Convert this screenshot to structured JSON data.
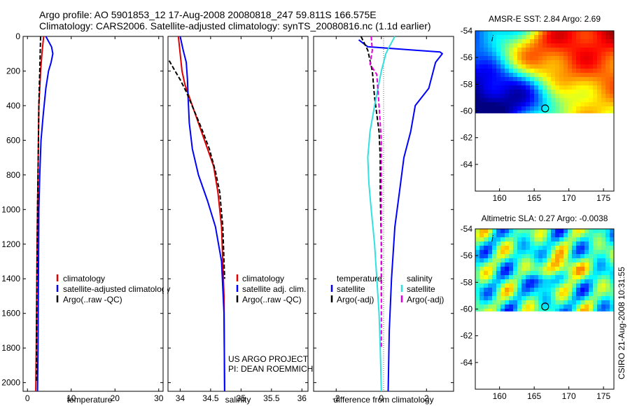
{
  "header": {
    "line1": "Argo profile: AO 5901853_12 17-Aug-2008 20080818_247 59.811S 166.575E",
    "line2": "Climatology: CARS2006. Satellite-adjusted climatology: synTS_20080816.nc (1.1d earlier)"
  },
  "colors": {
    "climatology": "#e00000",
    "satellite": "#0000ff",
    "argo": "#000000",
    "cyan": "#33e0e0",
    "magenta": "#e000e0"
  },
  "footer": {
    "project": "US ARGO PROJECT",
    "pi": "PI: DEAN ROEMMICH",
    "stamp": "CSIRO 21-Aug-2008 10:31:55"
  },
  "chart_data": [
    {
      "type": "line",
      "id": "temperature",
      "xlabel": "temperature",
      "ylabel": "",
      "xlim": [
        -1,
        31
      ],
      "ylim": [
        2050,
        0
      ],
      "xticks": [
        0,
        10,
        20,
        30
      ],
      "yticks": [
        0,
        200,
        400,
        600,
        800,
        1000,
        1200,
        1400,
        1600,
        1800,
        2000
      ],
      "legend": {
        "placement": "lower-right",
        "entries": [
          "climatology",
          "satellite-adjusted climatology",
          "Argo(..raw -QC)"
        ]
      },
      "series": [
        {
          "name": "climatology",
          "color": "climatology",
          "x": [
            3.7,
            3.5,
            3.3,
            3.0,
            2.8,
            2.6,
            2.5,
            2.4,
            2.3,
            2.2,
            2.1,
            2.0,
            1.9
          ],
          "y": [
            0,
            50,
            100,
            200,
            300,
            400,
            600,
            800,
            1000,
            1200,
            1500,
            1800,
            2050
          ]
        },
        {
          "name": "satellite-adjusted climatology",
          "color": "satellite",
          "x": [
            4.2,
            5.5,
            5.8,
            5.4,
            4.8,
            4.2,
            3.6,
            3.1,
            2.8,
            2.6,
            2.5,
            2.4,
            2.3
          ],
          "y": [
            0,
            60,
            100,
            150,
            200,
            300,
            450,
            600,
            800,
            1000,
            1400,
            1800,
            2050
          ]
        },
        {
          "name": "Argo(..raw -QC)",
          "color": "argo",
          "dash": true,
          "x": [
            3.0,
            2.9,
            2.8,
            2.7,
            2.6,
            2.5,
            2.4,
            2.3,
            2.2,
            2.1,
            2.0
          ],
          "y": [
            0,
            100,
            200,
            300,
            400,
            600,
            800,
            1000,
            1300,
            1600,
            2000
          ]
        }
      ]
    },
    {
      "type": "line",
      "id": "salinity",
      "xlabel": "salinity",
      "ylabel": "",
      "xlim": [
        33.8,
        36.1
      ],
      "ylim": [
        2050,
        0
      ],
      "xticks": [
        34,
        34.5,
        35,
        35.5,
        36
      ],
      "yticks": [
        0,
        200,
        400,
        600,
        800,
        1000,
        1200,
        1400,
        1600,
        1800,
        2000
      ],
      "legend": {
        "placement": "lower-right",
        "entries": [
          "climatology",
          "satellite adj. clim.",
          "Argo(..raw -QC)"
        ]
      },
      "series": [
        {
          "name": "climatology",
          "color": "climatology",
          "x": [
            33.97,
            34.0,
            34.03,
            34.08,
            34.15,
            34.25,
            34.35,
            34.45,
            34.55,
            34.62,
            34.68,
            34.72,
            34.73
          ],
          "y": [
            0,
            100,
            200,
            280,
            350,
            450,
            550,
            650,
            750,
            900,
            1100,
            1500,
            2050
          ]
        },
        {
          "name": "satellite adj. clim.",
          "color": "satellite",
          "x": [
            34.0,
            34.05,
            34.1,
            34.12,
            34.13,
            34.15,
            34.2,
            34.3,
            34.45,
            34.58,
            34.68,
            34.72,
            34.73
          ],
          "y": [
            0,
            80,
            150,
            250,
            350,
            500,
            650,
            800,
            950,
            1100,
            1300,
            1600,
            2050
          ]
        },
        {
          "name": "Argo(..raw -QC)",
          "color": "argo",
          "dash": true,
          "x": [
            33.82,
            33.9,
            34.0,
            34.1,
            34.22,
            34.35,
            34.48,
            34.58,
            34.65,
            34.7,
            34.73
          ],
          "y": [
            140,
            190,
            250,
            320,
            420,
            530,
            650,
            780,
            900,
            1100,
            1400
          ]
        }
      ]
    },
    {
      "type": "line",
      "id": "difference",
      "xlabel": "difference from climatology",
      "ylabel": "",
      "xlim": [
        -3,
        3.2
      ],
      "ylim": [
        2050,
        0
      ],
      "xticks": [
        -2,
        0,
        2
      ],
      "yticks": [
        0,
        200,
        400,
        600,
        800,
        1000,
        1200,
        1400,
        1600,
        1800,
        2000
      ],
      "legend": {
        "placement": "lower",
        "group1_title": "temperature",
        "group2_title": "salinity",
        "entries": [
          "satellite",
          "Argo(-adj)",
          "satellite",
          "Argo(-adj)"
        ]
      },
      "series": [
        {
          "name": "satellite",
          "group": "temperature",
          "color": "satellite",
          "x": [
            -1.0,
            -0.6,
            1.5,
            2.6,
            2.7,
            2.4,
            2.1,
            1.5,
            1.3,
            1.0,
            0.8,
            0.6,
            0.45,
            0.35,
            0.3
          ],
          "y": [
            20,
            60,
            80,
            90,
            100,
            150,
            300,
            400,
            550,
            700,
            900,
            1100,
            1400,
            1700,
            2050
          ]
        },
        {
          "name": "Argo(-adj)",
          "group": "temperature",
          "color": "argo",
          "dash": true,
          "x": [
            -0.9,
            -0.6,
            -0.4,
            -0.3,
            -0.2,
            -0.1,
            -0.05,
            -0.05,
            0.0,
            0.0
          ],
          "y": [
            0,
            80,
            200,
            350,
            450,
            550,
            700,
            900,
            1200,
            1500
          ]
        },
        {
          "name": "satellite",
          "group": "salinity",
          "color": "cyan",
          "x": [
            0.6,
            0.35,
            0.2,
            0.0,
            -0.3,
            -0.5,
            -0.6,
            -0.55,
            -0.45,
            -0.3,
            -0.2,
            -0.1,
            -0.05,
            0.0
          ],
          "y": [
            0,
            60,
            100,
            200,
            400,
            550,
            700,
            850,
            1000,
            1200,
            1400,
            1600,
            1800,
            2050
          ]
        },
        {
          "name": "Argo(-adj)",
          "group": "salinity",
          "color": "magenta",
          "dash": true,
          "x": [
            -0.45,
            -0.4,
            -0.5,
            -0.2,
            -0.1,
            0.0,
            0.0,
            0.0
          ],
          "y": [
            0,
            80,
            160,
            220,
            400,
            600,
            1000,
            1800
          ]
        }
      ]
    },
    {
      "type": "heatmap",
      "id": "sst-map",
      "title": "AMSR-E SST: 2.84 Argo: 2.69",
      "xlim": [
        156.5,
        176.5
      ],
      "ylim": [
        -66,
        -54
      ],
      "xticks": [
        160,
        165,
        170,
        175
      ],
      "yticks": [
        -54,
        -56,
        -58,
        -60,
        -62,
        -64
      ],
      "marker": {
        "lon": 166.575,
        "lat": -59.811
      }
    },
    {
      "type": "heatmap",
      "id": "sla-map",
      "title": "Altimetric SLA: 0.27 Argo: -0.0038",
      "xlim": [
        156.5,
        176.5
      ],
      "ylim": [
        -66,
        -54
      ],
      "xticks": [
        160,
        165,
        170,
        175
      ],
      "yticks": [
        -54,
        -56,
        -58,
        -60,
        -62,
        -64
      ],
      "marker": {
        "lon": 166.575,
        "lat": -59.811
      }
    }
  ]
}
